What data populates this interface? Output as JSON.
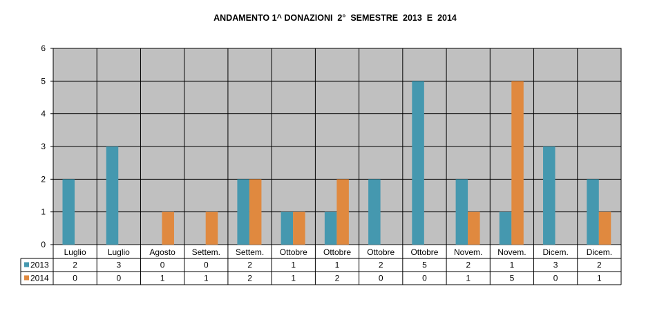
{
  "chart_data": {
    "type": "bar",
    "title": "ANDAMENTO 1^ DONAZIONI  2°  SEMESTRE  2013  E  2014",
    "categories": [
      "Luglio",
      "Luglio",
      "Agosto",
      "Settem.",
      "Settem.",
      "Ottobre",
      "Ottobre",
      "Ottobre",
      "Ottobre",
      "Novem.",
      "Novem.",
      "Dicem.",
      "Dicem."
    ],
    "series": [
      {
        "name": "2013",
        "color": "#4598AF",
        "values": [
          2,
          3,
          0,
          0,
          2,
          1,
          1,
          2,
          5,
          2,
          1,
          3,
          2
        ]
      },
      {
        "name": "2014",
        "color": "#E0893F",
        "values": [
          0,
          0,
          1,
          1,
          2,
          1,
          2,
          0,
          0,
          1,
          5,
          0,
          1
        ]
      }
    ],
    "ylim": [
      0,
      6
    ],
    "yticks": [
      0,
      1,
      2,
      3,
      4,
      5,
      6
    ],
    "grid": true,
    "plot_background": "#C0C0C0",
    "legend": "data-table-left"
  }
}
